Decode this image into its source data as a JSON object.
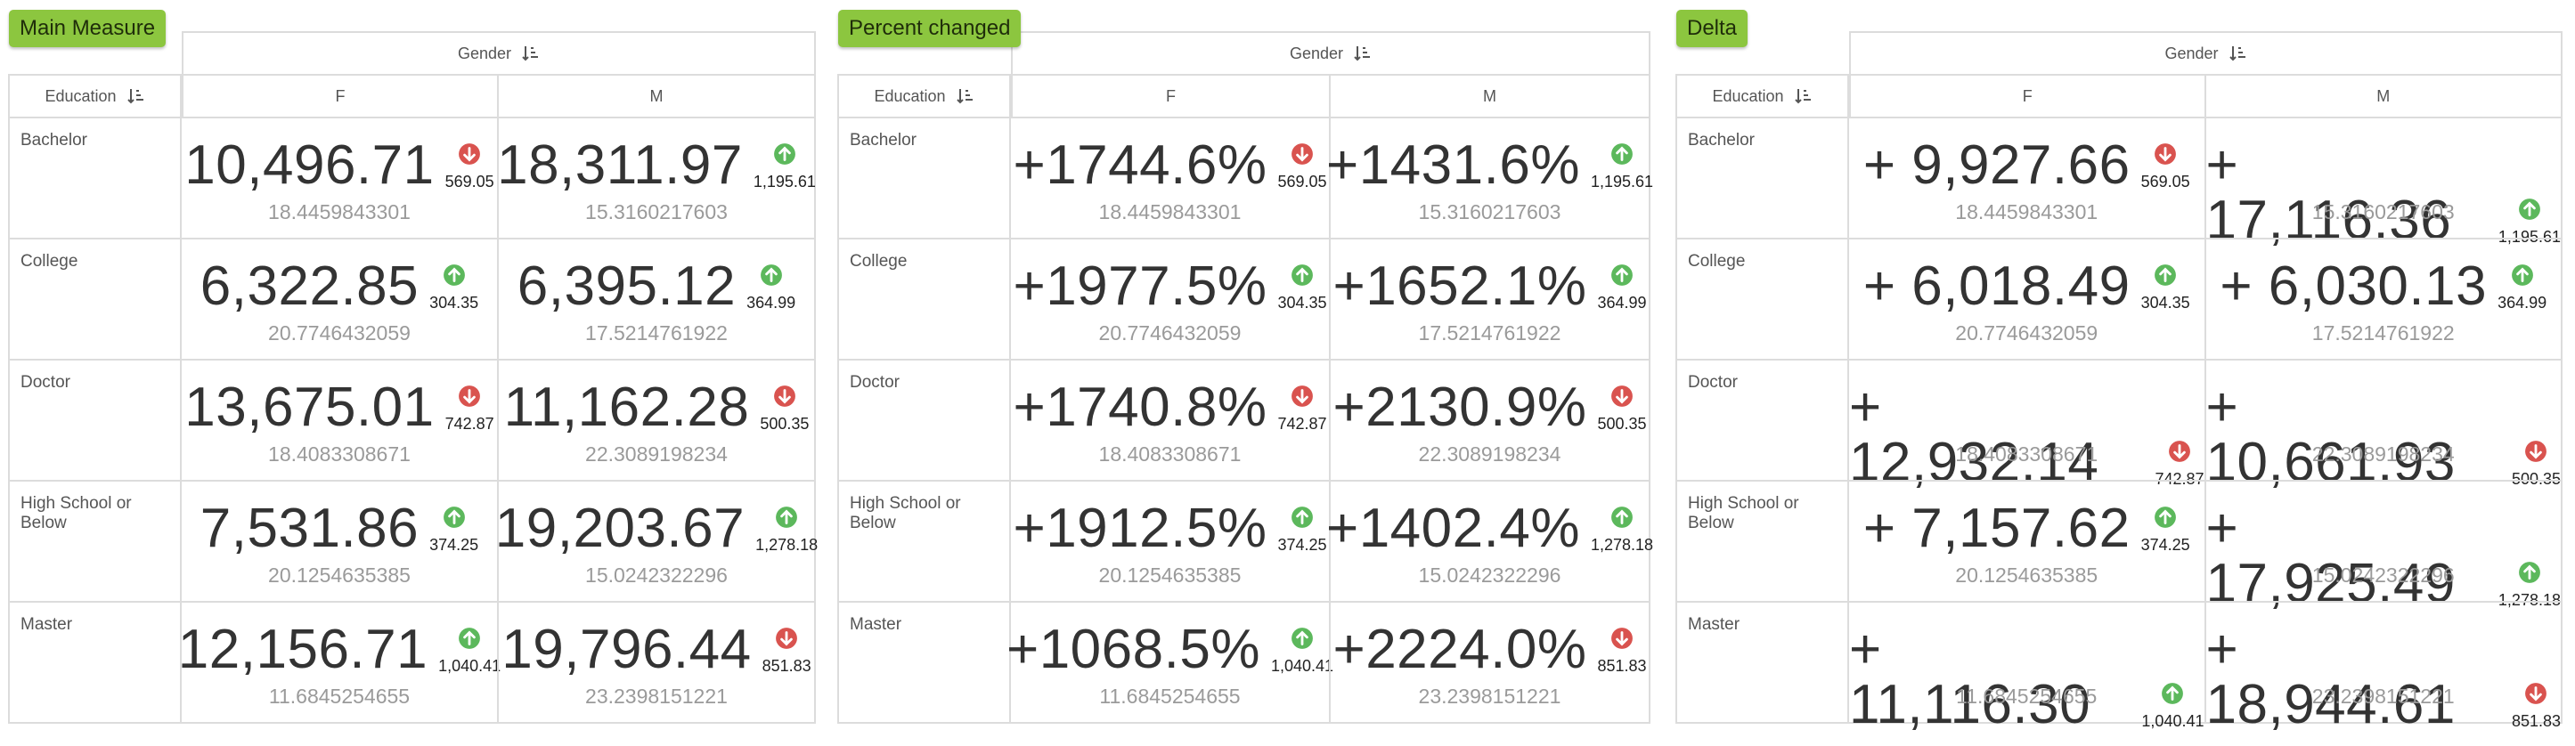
{
  "panels": [
    {
      "badge": "Main Measure",
      "column_header": "Gender",
      "row_header": "Education",
      "columns": [
        "F",
        "M"
      ],
      "rows": [
        {
          "label": "Bachelor",
          "cells": [
            {
              "value": "10,496.71",
              "trend": "down",
              "change": "569.05",
              "sub": "18.4459843301"
            },
            {
              "value": "18,311.97",
              "trend": "up",
              "change": "1,195.61",
              "sub": "15.3160217603"
            }
          ]
        },
        {
          "label": "College",
          "cells": [
            {
              "value": "6,322.85",
              "trend": "up",
              "change": "304.35",
              "sub": "20.7746432059"
            },
            {
              "value": "6,395.12",
              "trend": "up",
              "change": "364.99",
              "sub": "17.5214761922"
            }
          ]
        },
        {
          "label": "Doctor",
          "cells": [
            {
              "value": "13,675.01",
              "trend": "down",
              "change": "742.87",
              "sub": "18.4083308671"
            },
            {
              "value": "11,162.28",
              "trend": "down",
              "change": "500.35",
              "sub": "22.3089198234"
            }
          ]
        },
        {
          "label": "High School or Below",
          "cells": [
            {
              "value": "7,531.86",
              "trend": "up",
              "change": "374.25",
              "sub": "20.1254635385"
            },
            {
              "value": "19,203.67",
              "trend": "up",
              "change": "1,278.18",
              "sub": "15.0242322296"
            }
          ]
        },
        {
          "label": "Master",
          "cells": [
            {
              "value": "12,156.71",
              "trend": "up",
              "change": "1,040.41",
              "sub": "11.6845254655"
            },
            {
              "value": "19,796.44",
              "trend": "down",
              "change": "851.83",
              "sub": "23.2398151221"
            }
          ]
        }
      ]
    },
    {
      "badge": "Percent changed",
      "column_header": "Gender",
      "row_header": "Education",
      "columns": [
        "F",
        "M"
      ],
      "rows": [
        {
          "label": "Bachelor",
          "cells": [
            {
              "value": "+1744.6%",
              "trend": "down",
              "change": "569.05",
              "sub": "18.4459843301"
            },
            {
              "value": "+1431.6%",
              "trend": "up",
              "change": "1,195.61",
              "sub": "15.3160217603"
            }
          ]
        },
        {
          "label": "College",
          "cells": [
            {
              "value": "+1977.5%",
              "trend": "up",
              "change": "304.35",
              "sub": "20.7746432059"
            },
            {
              "value": "+1652.1%",
              "trend": "up",
              "change": "364.99",
              "sub": "17.5214761922"
            }
          ]
        },
        {
          "label": "Doctor",
          "cells": [
            {
              "value": "+1740.8%",
              "trend": "down",
              "change": "742.87",
              "sub": "18.4083308671"
            },
            {
              "value": "+2130.9%",
              "trend": "down",
              "change": "500.35",
              "sub": "22.3089198234"
            }
          ]
        },
        {
          "label": "High School or Below",
          "cells": [
            {
              "value": "+1912.5%",
              "trend": "up",
              "change": "374.25",
              "sub": "20.1254635385"
            },
            {
              "value": "+1402.4%",
              "trend": "up",
              "change": "1,278.18",
              "sub": "15.0242322296"
            }
          ]
        },
        {
          "label": "Master",
          "cells": [
            {
              "value": "+1068.5%",
              "trend": "up",
              "change": "1,040.41",
              "sub": "11.6845254655"
            },
            {
              "value": "+2224.0%",
              "trend": "down",
              "change": "851.83",
              "sub": "23.2398151221"
            }
          ]
        }
      ]
    },
    {
      "badge": "Delta",
      "column_header": "Gender",
      "row_header": "Education",
      "columns": [
        "F",
        "M"
      ],
      "rows": [
        {
          "label": "Bachelor",
          "cells": [
            {
              "value": "+ 9,927.66",
              "trend": "down",
              "change": "569.05",
              "sub": "18.4459843301"
            },
            {
              "value": "+ 17,116.36",
              "trend": "up",
              "change": "1,195.61",
              "sub": "15.3160217603"
            }
          ]
        },
        {
          "label": "College",
          "cells": [
            {
              "value": "+ 6,018.49",
              "trend": "up",
              "change": "304.35",
              "sub": "20.7746432059"
            },
            {
              "value": "+ 6,030.13",
              "trend": "up",
              "change": "364.99",
              "sub": "17.5214761922"
            }
          ]
        },
        {
          "label": "Doctor",
          "cells": [
            {
              "value": "+ 12,932.14",
              "trend": "down",
              "change": "742.87",
              "sub": "18.4083308671"
            },
            {
              "value": "+ 10,661.93",
              "trend": "down",
              "change": "500.35",
              "sub": "22.3089198234"
            }
          ]
        },
        {
          "label": "High School or Below",
          "cells": [
            {
              "value": "+ 7,157.62",
              "trend": "up",
              "change": "374.25",
              "sub": "20.1254635385"
            },
            {
              "value": "+ 17,925.49",
              "trend": "up",
              "change": "1,278.18",
              "sub": "15.0242322296"
            }
          ]
        },
        {
          "label": "Master",
          "cells": [
            {
              "value": "+ 11,116.30",
              "trend": "up",
              "change": "1,040.41",
              "sub": "11.6845254655"
            },
            {
              "value": "+ 18,944.61",
              "trend": "down",
              "change": "851.83",
              "sub": "23.2398151221"
            }
          ]
        }
      ]
    }
  ]
}
